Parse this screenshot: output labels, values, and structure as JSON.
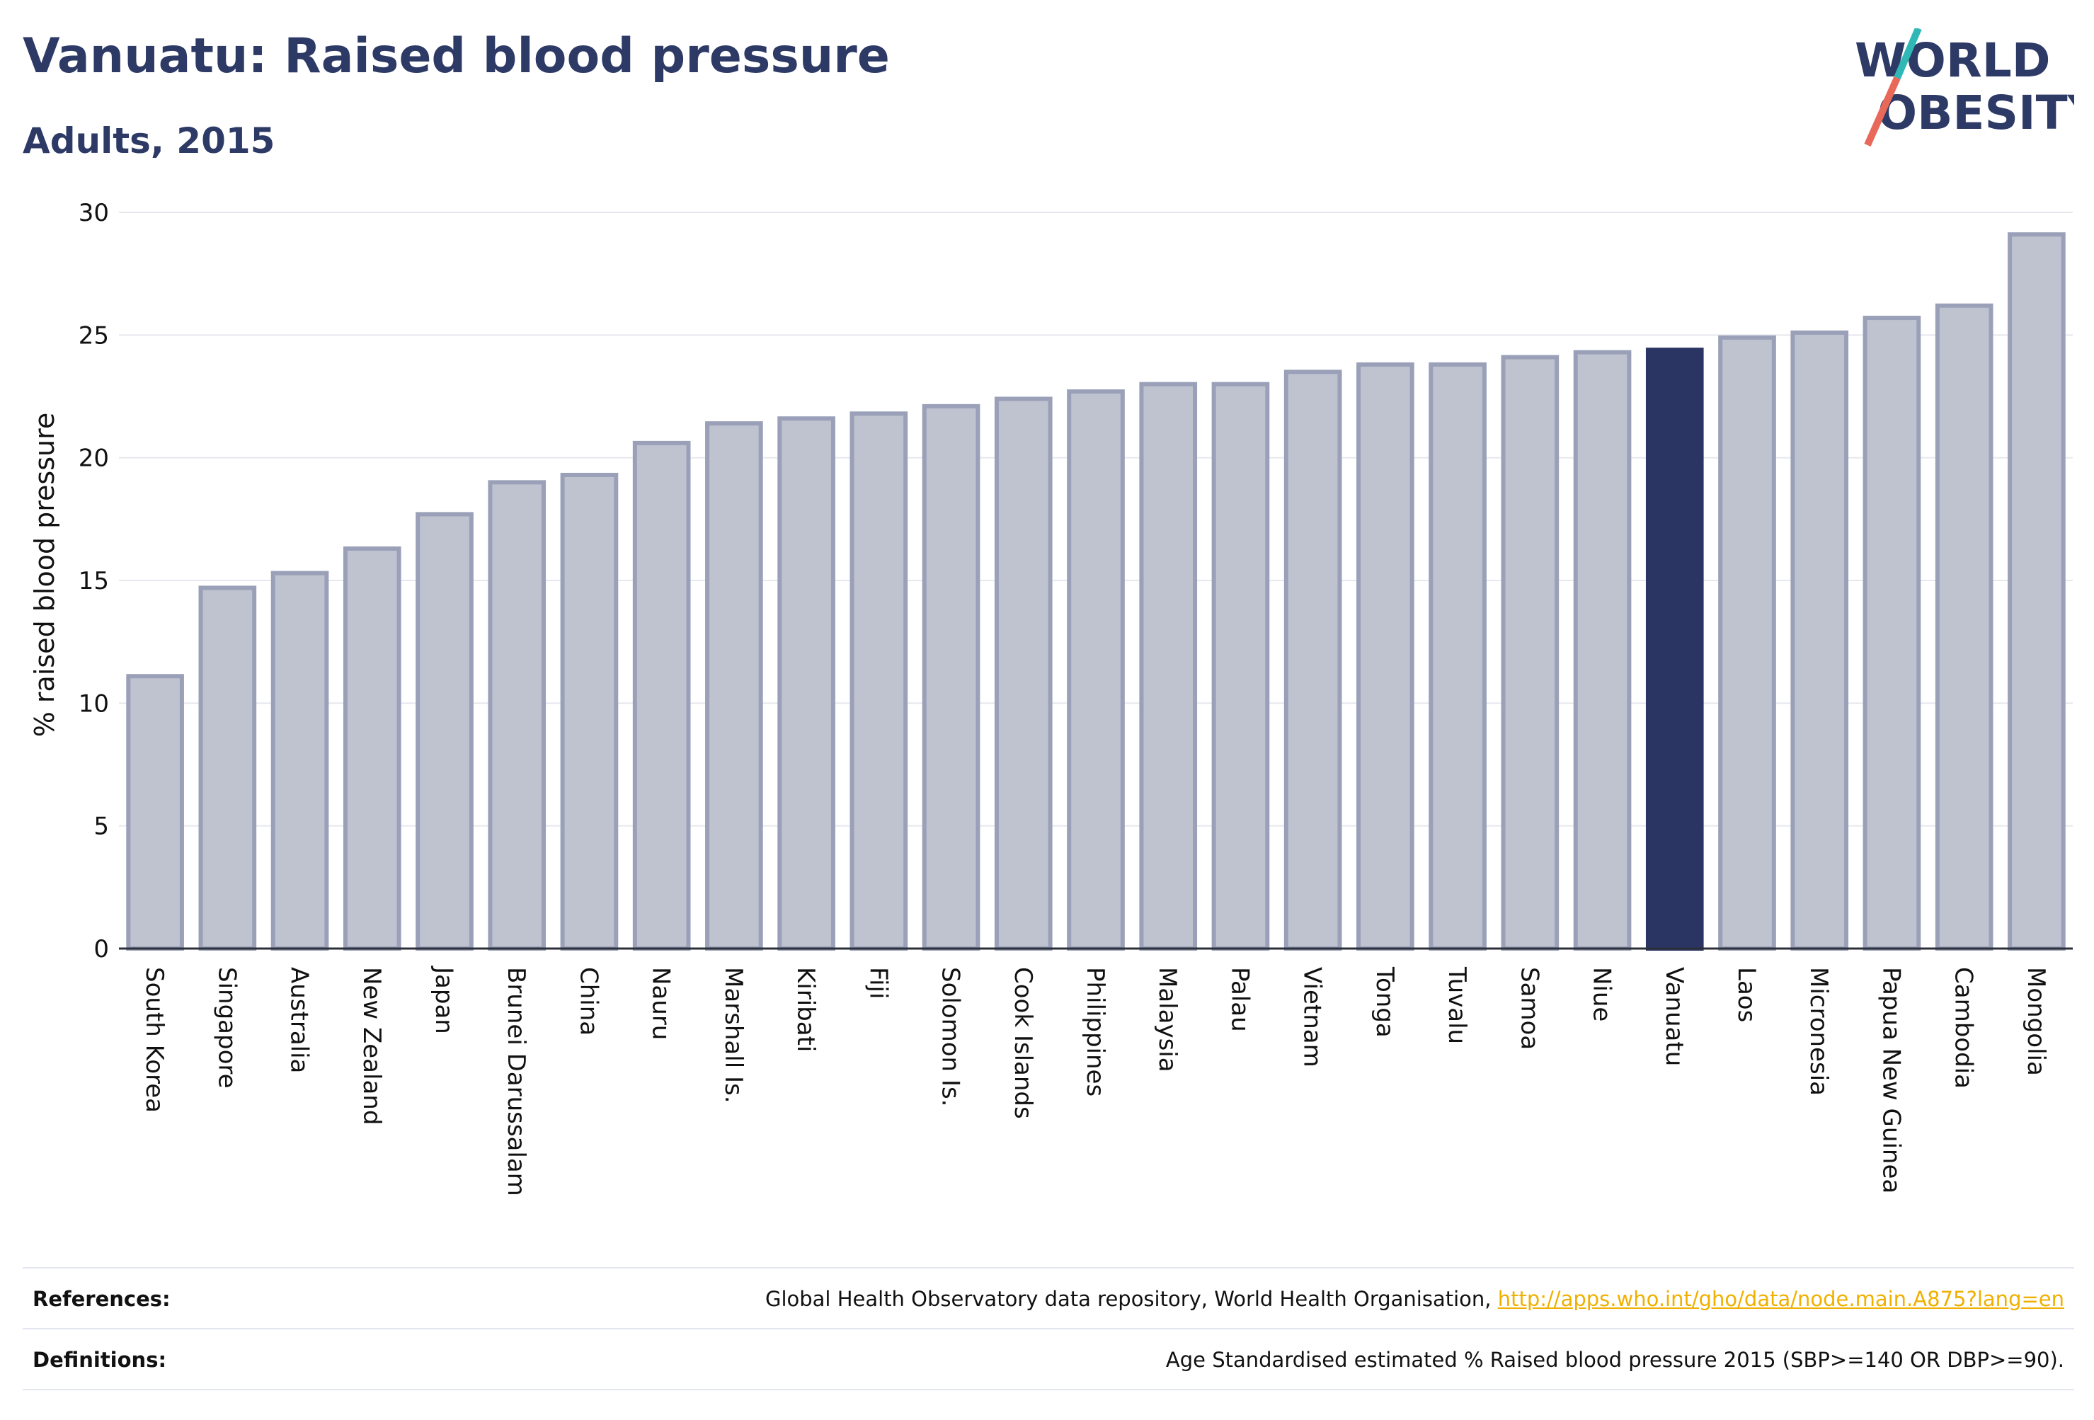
{
  "title": "Vanuatu: Raised blood pressure",
  "subtitle": "Adults, 2015",
  "logo": {
    "line1": "WORLD",
    "line2": "OBESITY",
    "colors": {
      "text": "#2e3a66",
      "slash_top": "#2fb8b5",
      "slash_bottom": "#e8685a"
    }
  },
  "chart_data": {
    "type": "bar",
    "ylabel": "% raised blood pressure",
    "ylim": [
      0,
      30
    ],
    "yticks": [
      0,
      5,
      10,
      15,
      20,
      25,
      30
    ],
    "grid": true,
    "highlight": "Vanuatu",
    "colors": {
      "bar": "#bfc2cf",
      "bar_border": "#9aa0b8",
      "highlight": "#2b3563"
    },
    "categories": [
      "South Korea",
      "Singapore",
      "Australia",
      "New Zealand",
      "Japan",
      "Brunei Darussalam",
      "China",
      "Nauru",
      "Marshall Is.",
      "Kiribati",
      "Fiji",
      "Solomon Is.",
      "Cook Islands",
      "Philippines",
      "Malaysia",
      "Palau",
      "Vietnam",
      "Tonga",
      "Tuvalu",
      "Samoa",
      "Niue",
      "Vanuatu",
      "Laos",
      "Micronesia",
      "Papua New Guinea",
      "Cambodia",
      "Mongolia"
    ],
    "values": [
      11.1,
      14.7,
      15.3,
      16.3,
      17.7,
      19.0,
      19.3,
      20.6,
      21.4,
      21.6,
      21.8,
      22.1,
      22.4,
      22.7,
      23.0,
      23.0,
      23.5,
      23.8,
      23.8,
      24.1,
      24.3,
      24.4,
      24.9,
      25.1,
      25.7,
      26.2,
      29.1
    ]
  },
  "footer": {
    "references_label": "References:",
    "references_text": "Global Health Observatory data repository, World Health Organisation, ",
    "references_link": "http://apps.who.int/gho/data/node.main.A875?lang=en",
    "definitions_label": "Definitions:",
    "definitions_text": "Age Standardised estimated % Raised blood pressure 2015 (SBP>=140 OR DBP>=90)."
  }
}
